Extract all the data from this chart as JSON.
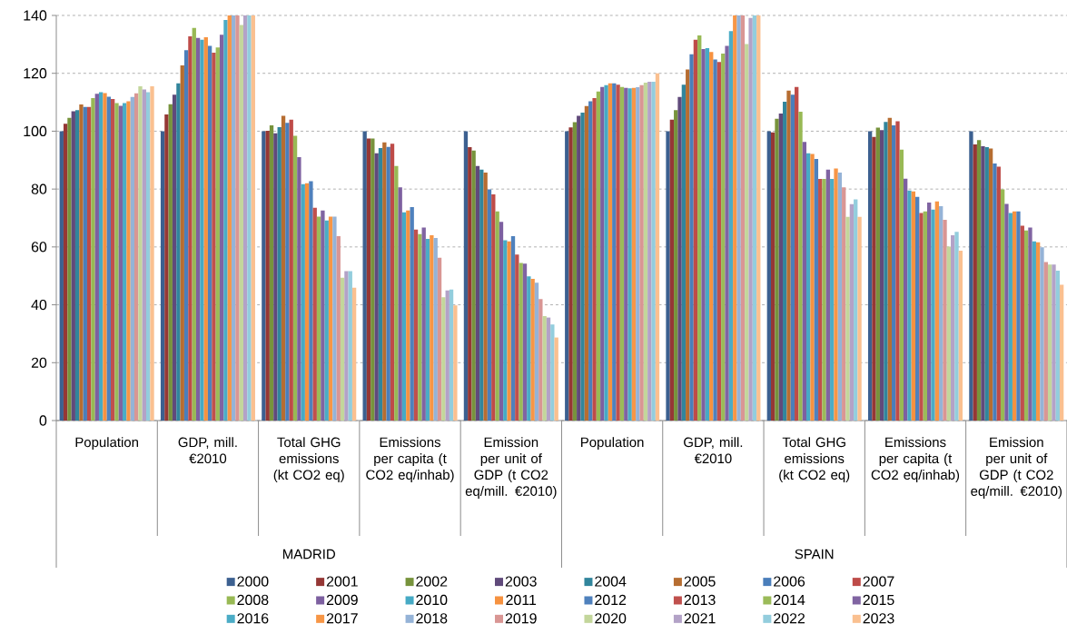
{
  "chart_data": {
    "type": "bar",
    "categories": [
      "Population",
      "GDP, mill. €2010",
      "Total GHG emissions (kt CO2 eq)",
      "Emissions per capita (t CO2 eq/inhab)",
      "Emission per unit of GDP (t CO2 eq/mill. €2010)",
      "Population",
      "GDP, mill. €2010",
      "Total GHG emissions (kt CO2 eq)",
      "Emissions per capita (t CO2 eq/inhab)",
      "Emission per unit of GDP (t CO2 eq/mill. €2010)"
    ],
    "annotations": [
      "MADRID",
      "SPAIN"
    ],
    "ylim": [
      0,
      140
    ],
    "yticks": [
      0,
      20,
      40,
      60,
      80,
      100,
      120,
      140
    ],
    "grid": "y",
    "legend": "bottom",
    "series": [
      {
        "name": "2000",
        "color": "#3c6090",
        "values": [
          100,
          100,
          100,
          100,
          100,
          100,
          100,
          100,
          100,
          100
        ]
      },
      {
        "name": "2001",
        "color": "#953735",
        "values": [
          102.6,
          105.8,
          100.1,
          97.5,
          94.5,
          101.3,
          104,
          99.6,
          98,
          95.4
        ]
      },
      {
        "name": "2002",
        "color": "#77933c",
        "values": [
          104.6,
          109.3,
          102,
          97.5,
          93.3,
          103.1,
          107.3,
          104.3,
          101.2,
          96.9
        ]
      },
      {
        "name": "2003",
        "color": "#604a7b",
        "values": [
          106.9,
          112.6,
          99.3,
          92.4,
          88,
          105.3,
          111.8,
          106.1,
          100.4,
          94.8
        ]
      },
      {
        "name": "2004",
        "color": "#31859c",
        "values": [
          107.3,
          116.5,
          101.4,
          94.2,
          86.7,
          106.4,
          116.1,
          110.2,
          103.2,
          94.5
        ]
      },
      {
        "name": "2005",
        "color": "#b66d31",
        "values": [
          109.2,
          122.7,
          105.3,
          96.1,
          85.7,
          108.7,
          121.3,
          114,
          104.6,
          94
        ]
      },
      {
        "name": "2006",
        "color": "#4a7ebb",
        "values": [
          108.4,
          128,
          102.9,
          94.6,
          79.9,
          110.3,
          126.6,
          112.6,
          102,
          88.8
        ]
      },
      {
        "name": "2007",
        "color": "#be4b48",
        "values": [
          108.4,
          132.8,
          104,
          95.7,
          78.2,
          111.4,
          131.6,
          115.3,
          103.4,
          87.7
        ]
      },
      {
        "name": "2008",
        "color": "#98b954",
        "values": [
          111.4,
          135.7,
          98.4,
          88,
          72.3,
          113.7,
          133.1,
          106.7,
          93.6,
          79.9
        ]
      },
      {
        "name": "2009",
        "color": "#7d60a0",
        "values": [
          112.9,
          132.2,
          91,
          80.6,
          68.7,
          115.3,
          128.4,
          96.3,
          83.6,
          74.9
        ]
      },
      {
        "name": "2010",
        "color": "#46aac5",
        "values": [
          113.5,
          131.6,
          81.7,
          72,
          62.3,
          115.9,
          128.7,
          92.4,
          79.5,
          71.7
        ]
      },
      {
        "name": "2011",
        "color": "#f69240",
        "values": [
          113.2,
          132.5,
          82,
          72.6,
          61.9,
          116.5,
          127.4,
          92.1,
          79.2,
          72.3
        ]
      },
      {
        "name": "2012",
        "color": "#4f81bd",
        "values": [
          111.9,
          129.5,
          82.7,
          73.8,
          63.7,
          116.5,
          124.8,
          90.4,
          77.3,
          72.3
        ]
      },
      {
        "name": "2013",
        "color": "#c0504d",
        "values": [
          111.1,
          127.1,
          73.5,
          66,
          57.4,
          116.1,
          123.9,
          83.5,
          71.7,
          67.3
        ]
      },
      {
        "name": "2014",
        "color": "#9bbb59",
        "values": [
          109.7,
          128.9,
          70.5,
          64.4,
          54.5,
          115.3,
          126.8,
          83.5,
          72.3,
          65.7
        ]
      },
      {
        "name": "2015",
        "color": "#8064a2",
        "values": [
          108.8,
          133.3,
          72.6,
          66.7,
          54.2,
          115,
          129.5,
          86.7,
          75.3,
          66.7
        ]
      },
      {
        "name": "2016",
        "color": "#4bacc6",
        "values": [
          109.7,
          138.4,
          69.1,
          62.8,
          49.8,
          114.8,
          134.6,
          83.5,
          72.9,
          61.9
        ]
      },
      {
        "name": "2017",
        "color": "#f79646",
        "values": [
          110.3,
          140,
          70.5,
          64,
          49,
          115,
          140,
          87.1,
          75.7,
          61.6
        ]
      },
      {
        "name": "2018",
        "color": "#95b3d7",
        "values": [
          111.8,
          140,
          70.5,
          63.1,
          47.6,
          115.2,
          140,
          85.7,
          74.1,
          59.9
        ]
      },
      {
        "name": "2019",
        "color": "#d99694",
        "values": [
          113.1,
          140,
          63.7,
          56.3,
          42,
          115.9,
          140,
          80.6,
          69.4,
          54.8
        ]
      },
      {
        "name": "2020",
        "color": "#c3d69b",
        "values": [
          115.5,
          136.7,
          49.4,
          42.6,
          36.1,
          116.8,
          130.1,
          70.4,
          60.1,
          53.9
        ]
      },
      {
        "name": "2021",
        "color": "#b3a2c7",
        "values": [
          114.4,
          140,
          51.6,
          45,
          35.6,
          117.1,
          139.1,
          74.8,
          64,
          53.9
        ]
      },
      {
        "name": "2022",
        "color": "#93cddd",
        "values": [
          113.5,
          140,
          51.6,
          45.3,
          33.2,
          117.1,
          140,
          76.4,
          65.2,
          51.8
        ]
      },
      {
        "name": "2023",
        "color": "#fac090",
        "values": [
          115.5,
          140,
          45.9,
          39.8,
          28.7,
          120,
          140,
          70.4,
          58.7,
          46.9
        ]
      }
    ]
  }
}
